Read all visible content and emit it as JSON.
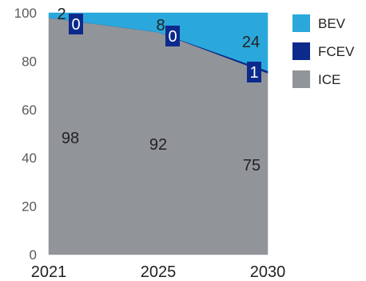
{
  "chart_data": {
    "type": "area",
    "stacked": true,
    "x": [
      "2021",
      "2025",
      "2030"
    ],
    "series": [
      {
        "name": "ICE",
        "values": [
          98,
          92,
          75
        ],
        "color": "#919499",
        "labels": [
          "98",
          "92",
          "75"
        ]
      },
      {
        "name": "FCEV",
        "values": [
          0,
          0,
          1
        ],
        "color": "#0b2a8c",
        "labels": [
          "0",
          "0",
          "1"
        ]
      },
      {
        "name": "BEV",
        "values": [
          2,
          8,
          24
        ],
        "color": "#2aa8dc",
        "labels": [
          "2",
          "8",
          "24"
        ]
      }
    ],
    "legend": {
      "position": "right",
      "order": [
        "BEV",
        "FCEV",
        "ICE"
      ]
    },
    "yticks": [
      "0",
      "20",
      "40",
      "60",
      "80",
      "100"
    ],
    "ylim": [
      0,
      100
    ],
    "grid": false
  }
}
